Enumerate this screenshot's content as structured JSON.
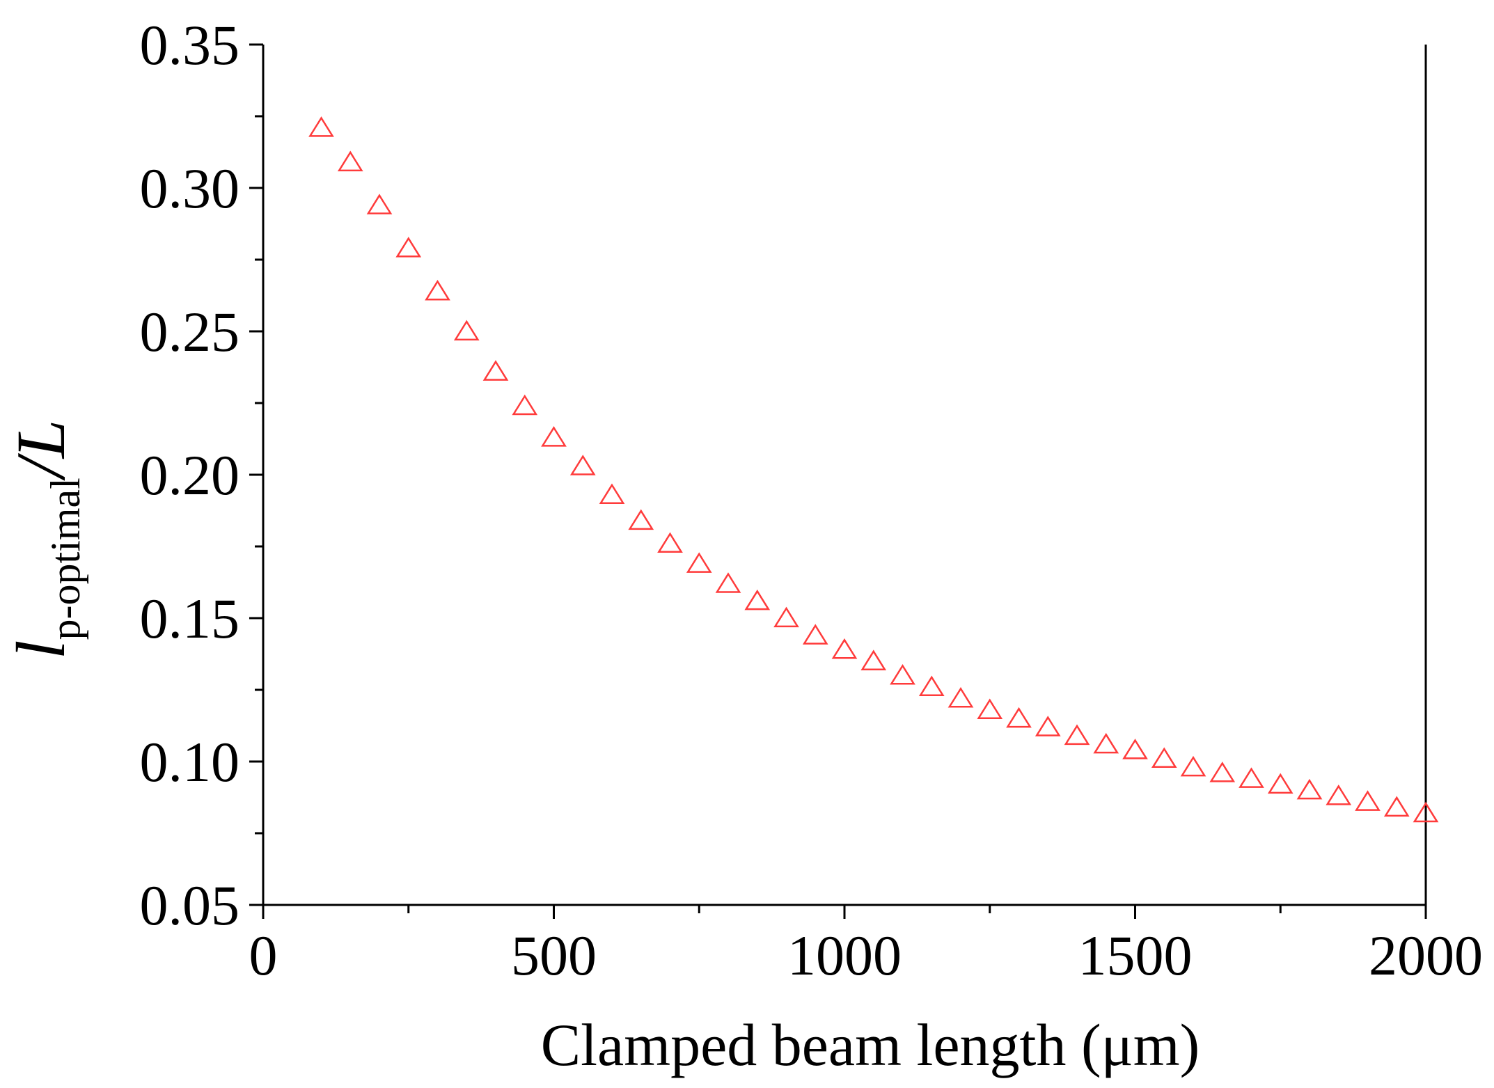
{
  "chart_data": {
    "type": "scatter",
    "title": "",
    "xlabel": "Clamped beam length (μm)",
    "ylabel": {
      "main": "l",
      "subscript": "p-optimal",
      "suffix": "/L"
    },
    "xlim": [
      0,
      2000
    ],
    "ylim": [
      0.05,
      0.35
    ],
    "xticks": [
      0,
      500,
      1000,
      1500,
      2000
    ],
    "xtick_labels": [
      "0",
      "500",
      "1000",
      "1500",
      "2000"
    ],
    "yticks": [
      0.05,
      0.1,
      0.15,
      0.2,
      0.25,
      0.3,
      0.35
    ],
    "ytick_labels": [
      "0.05",
      "0.10",
      "0.15",
      "0.20",
      "0.25",
      "0.30",
      "0.35"
    ],
    "grid": false,
    "marker": "open-triangle",
    "marker_color": "#ff3b3b",
    "series": [
      {
        "name": "l_p-optimal/L",
        "x": [
          100,
          150,
          200,
          250,
          300,
          350,
          400,
          450,
          500,
          550,
          600,
          650,
          700,
          750,
          800,
          850,
          900,
          950,
          1000,
          1050,
          1100,
          1150,
          1200,
          1250,
          1300,
          1350,
          1400,
          1450,
          1500,
          1550,
          1600,
          1650,
          1700,
          1750,
          1800,
          1850,
          1900,
          1950,
          2000
        ],
        "y": [
          0.321,
          0.309,
          0.294,
          0.279,
          0.264,
          0.25,
          0.236,
          0.224,
          0.213,
          0.203,
          0.193,
          0.184,
          0.176,
          0.169,
          0.162,
          0.156,
          0.15,
          0.144,
          0.139,
          0.135,
          0.13,
          0.126,
          0.122,
          0.118,
          0.115,
          0.112,
          0.109,
          0.106,
          0.104,
          0.101,
          0.098,
          0.096,
          0.094,
          0.092,
          0.09,
          0.088,
          0.086,
          0.084,
          0.082
        ]
      }
    ]
  }
}
